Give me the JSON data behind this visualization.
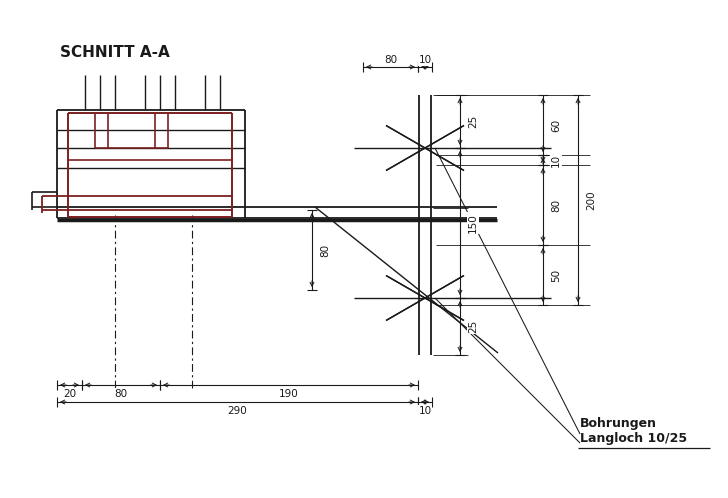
{
  "title": "SCHNITT A-A",
  "bg_color": "#ffffff",
  "line_color": "#1a1a1a",
  "dark_color": "#000000",
  "red_color": "#7B2020",
  "figsize": [
    7.28,
    4.98
  ],
  "dpi": 100
}
